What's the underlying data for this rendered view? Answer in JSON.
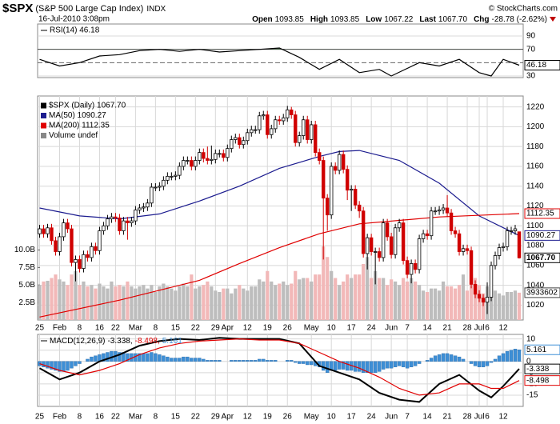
{
  "header": {
    "symbol": "$SPX",
    "name": "(S&P 500 Large Cap Index)",
    "exchange": "INDX",
    "timestamp": "16-Jul-2010 3:08pm",
    "credit": "© StockCharts.com",
    "stats": [
      {
        "label": "Open",
        "value": "1093.85"
      },
      {
        "label": "High",
        "value": "1093.85"
      },
      {
        "label": "Low",
        "value": "1067.22"
      },
      {
        "label": "Last",
        "value": "1067.70"
      },
      {
        "label": "Chg",
        "value": "-28.78 (-2.62%)"
      }
    ]
  },
  "chart_data": [
    {
      "type": "line",
      "title": "RSI(14) 46.18",
      "ylim": [
        27.6,
        108
      ],
      "yticks": [
        90,
        70,
        30
      ],
      "midline": 50,
      "overbought": 70,
      "fill_color": "#4f7f4f",
      "series": [
        {
          "name": "RSI(14)",
          "color": "#000000",
          "last_label": "46.18",
          "x": [
            0,
            5,
            10,
            15,
            20,
            25,
            30,
            35,
            40,
            45,
            50,
            55,
            60,
            65,
            70,
            75,
            80,
            85,
            88,
            95,
            100,
            105,
            110,
            113,
            116,
            120
          ],
          "values": [
            55,
            45,
            50,
            60,
            62,
            68,
            70,
            67,
            70,
            66,
            68,
            70,
            72,
            58,
            40,
            55,
            35,
            40,
            30,
            50,
            45,
            55,
            35,
            30,
            55,
            46.18
          ]
        }
      ]
    },
    {
      "type": "candlestick",
      "grid": true,
      "xlim": [
        -0.5,
        121
      ],
      "xticks": [
        {
          "value": 0,
          "label": "25"
        },
        {
          "value": 5,
          "label": "Feb"
        },
        {
          "value": 10,
          "label": "8"
        },
        {
          "value": 15,
          "label": "16"
        },
        {
          "value": 19,
          "label": "22"
        },
        {
          "value": 24,
          "label": "Mar"
        },
        {
          "value": 29,
          "label": "8"
        },
        {
          "value": 34,
          "label": "15"
        },
        {
          "value": 39,
          "label": "22"
        },
        {
          "value": 44,
          "label": "29"
        },
        {
          "value": 47,
          "label": "Apr"
        },
        {
          "value": 52,
          "label": "12"
        },
        {
          "value": 57,
          "label": "19"
        },
        {
          "value": 62,
          "label": "26"
        },
        {
          "value": 68,
          "label": "May"
        },
        {
          "value": 73,
          "label": "10"
        },
        {
          "value": 78,
          "label": "17"
        },
        {
          "value": 83,
          "label": "24"
        },
        {
          "value": 88,
          "label": "Jun"
        },
        {
          "value": 92,
          "label": "7"
        },
        {
          "value": 97,
          "label": "14"
        },
        {
          "value": 102,
          "label": "21"
        },
        {
          "value": 107,
          "label": "28"
        },
        {
          "value": 110,
          "label": "Jul"
        },
        {
          "value": 112,
          "label": "6"
        },
        {
          "value": 116,
          "label": "12"
        }
      ],
      "ylim": [
        1005,
        1231
      ],
      "yticks": [
        1020,
        1040,
        1060,
        1080,
        1100,
        1120,
        1140,
        1160,
        1180,
        1200,
        1220
      ],
      "y2lim": [
        0,
        32
      ],
      "y2ticks": [
        {
          "value": 2.5,
          "label": "2.5B"
        },
        {
          "value": 5,
          "label": "5.0B"
        },
        {
          "value": 7.5,
          "label": "7.5B"
        },
        {
          "value": 10,
          "label": "10.0B"
        }
      ],
      "ohlc": {
        "name": "$SPX (Daily) 1067.70",
        "last_label": "1067.70",
        "up_color": "#000000",
        "down_color": "#d00000",
        "open": [
          1092,
          1097,
          1092,
          1098,
          1085,
          1074,
          1089,
          1103,
          1097,
          1063,
          1066,
          1057,
          1071,
          1068,
          1079,
          1075,
          1095,
          1100,
          1107,
          1109,
          1108,
          1095,
          1105,
          1103,
          1105,
          1116,
          1118,
          1119,
          1123,
          1139,
          1139,
          1140,
          1146,
          1150,
          1150,
          1151,
          1160,
          1166,
          1166,
          1160,
          1166,
          1174,
          1168,
          1166,
          1167,
          1173,
          1173,
          1169,
          1178,
          1187,
          1189,
          1182,
          1186,
          1194,
          1197,
          1197,
          1211,
          1212,
          1192,
          1198,
          1207,
          1206,
          1209,
          1217,
          1212,
          1184,
          1191,
          1207,
          1187,
          1202,
          1174,
          1166,
          1128,
          1111,
          1160,
          1156,
          1172,
          1157,
          1136,
          1137,
          1121,
          1115,
          1072,
          1088,
          1074,
          1074,
          1068,
          1103,
          1089,
          1071,
          1098,
          1103,
          1065,
          1051,
          1062,
          1056,
          1087,
          1092,
          1090,
          1115,
          1115,
          1116,
          1118,
          1113,
          1095,
          1092,
          1074,
          1077,
          1075,
          1041,
          1031,
          1027,
          1023,
          1028,
          1060,
          1070,
          1078,
          1079,
          1095,
          1095,
          1094
        ],
        "high": [
          1101,
          1101,
          1102,
          1102,
          1089,
          1093,
          1107,
          1107,
          1101,
          1070,
          1070,
          1075,
          1075,
          1083,
          1083,
          1099,
          1104,
          1111,
          1113,
          1113,
          1112,
          1109,
          1109,
          1109,
          1120,
          1122,
          1123,
          1127,
          1143,
          1143,
          1144,
          1150,
          1154,
          1154,
          1155,
          1164,
          1170,
          1170,
          1170,
          1170,
          1178,
          1178,
          1180,
          1181,
          1177,
          1177,
          1177,
          1182,
          1191,
          1193,
          1193,
          1190,
          1198,
          1201,
          1201,
          1215,
          1216,
          1216,
          1202,
          1211,
          1211,
          1213,
          1221,
          1220,
          1216,
          1195,
          1211,
          1211,
          1206,
          1206,
          1178,
          1170,
          1132,
          1164,
          1164,
          1176,
          1176,
          1161,
          1141,
          1141,
          1125,
          1119,
          1092,
          1092,
          1078,
          1078,
          1107,
          1107,
          1093,
          1102,
          1107,
          1107,
          1069,
          1066,
          1066,
          1091,
          1096,
          1096,
          1119,
          1119,
          1120,
          1122,
          1131,
          1117,
          1099,
          1096,
          1081,
          1081,
          1079,
          1045,
          1035,
          1031,
          1043,
          1064,
          1074,
          1082,
          1083,
          1099,
          1099,
          1101,
          1094
        ],
        "low": [
          1088,
          1088,
          1088,
          1081,
          1070,
          1070,
          1085,
          1093,
          1059,
          1044,
          1053,
          1053,
          1064,
          1064,
          1071,
          1071,
          1091,
          1096,
          1103,
          1104,
          1091,
          1091,
          1086,
          1099,
          1101,
          1112,
          1114,
          1115,
          1119,
          1135,
          1135,
          1136,
          1142,
          1146,
          1146,
          1147,
          1156,
          1162,
          1156,
          1156,
          1162,
          1164,
          1162,
          1162,
          1163,
          1169,
          1165,
          1165,
          1174,
          1183,
          1178,
          1178,
          1182,
          1190,
          1193,
          1193,
          1207,
          1188,
          1188,
          1194,
          1202,
          1202,
          1205,
          1208,
          1180,
          1180,
          1187,
          1183,
          1183,
          1170,
          1162,
          1066,
          1095,
          1107,
          1152,
          1152,
          1153,
          1126,
          1115,
          1117,
          1108,
          1068,
          1056,
          1070,
          1041,
          1064,
          1064,
          1085,
          1067,
          1067,
          1094,
          1061,
          1047,
          1042,
          1052,
          1052,
          1083,
          1086,
          1086,
          1111,
          1111,
          1112,
          1109,
          1091,
          1088,
          1070,
          1070,
          1071,
          1037,
          1027,
          1023,
          1019,
          1011,
          1024,
          1056,
          1066,
          1074,
          1075,
          1091,
          1091,
          1067
        ],
        "close": [
          1097,
          1092,
          1098,
          1085,
          1074,
          1089,
          1103,
          1097,
          1063,
          1066,
          1057,
          1071,
          1068,
          1079,
          1075,
          1095,
          1100,
          1107,
          1109,
          1108,
          1095,
          1105,
          1103,
          1105,
          1116,
          1118,
          1119,
          1123,
          1139,
          1139,
          1140,
          1146,
          1150,
          1150,
          1151,
          1160,
          1166,
          1166,
          1160,
          1166,
          1174,
          1168,
          1166,
          1167,
          1173,
          1173,
          1169,
          1178,
          1187,
          1189,
          1182,
          1186,
          1194,
          1197,
          1197,
          1211,
          1212,
          1192,
          1198,
          1207,
          1206,
          1209,
          1217,
          1212,
          1184,
          1191,
          1207,
          1187,
          1202,
          1174,
          1166,
          1128,
          1111,
          1160,
          1156,
          1172,
          1157,
          1136,
          1137,
          1121,
          1115,
          1072,
          1088,
          1074,
          1074,
          1068,
          1103,
          1089,
          1071,
          1098,
          1103,
          1065,
          1051,
          1062,
          1056,
          1087,
          1092,
          1090,
          1115,
          1115,
          1116,
          1118,
          1113,
          1095,
          1092,
          1074,
          1077,
          1075,
          1041,
          1031,
          1027,
          1023,
          1028,
          1060,
          1070,
          1078,
          1079,
          1095,
          1095,
          1097,
          1067.7
        ]
      },
      "volume": {
        "name": "Volume undef",
        "axis": "y2",
        "last_label": "3933602",
        "up_color": "#bdbdbd",
        "down_color": "#f2b8b8",
        "values": [
          5,
          5.5,
          5.6,
          6,
          6.5,
          5.8,
          5.5,
          5,
          6.5,
          7,
          5,
          5.5,
          4.8,
          5,
          4.5,
          5.2,
          4.8,
          4.5,
          5.5,
          4.8,
          5,
          4.8,
          5.5,
          4.8,
          4.5,
          4.8,
          5,
          4.5,
          5,
          4,
          4.8,
          5.2,
          4.8,
          4.5,
          4.2,
          4.8,
          5.2,
          4.8,
          6.5,
          4.5,
          4.8,
          5,
          5.5,
          4.8,
          4.2,
          4,
          4.5,
          4.5,
          3.8,
          4.5,
          5,
          4.5,
          4.2,
          4.8,
          4.8,
          5.8,
          5.5,
          7,
          5.5,
          5,
          5.2,
          5.5,
          5,
          5.2,
          7,
          5.8,
          6,
          6,
          5.5,
          6.5,
          6.5,
          10.5,
          9,
          7,
          6,
          5,
          5.5,
          6.5,
          6,
          6.5,
          6.5,
          8,
          9,
          6,
          7,
          6,
          6,
          5,
          5.8,
          5.5,
          5,
          6,
          5.5,
          6,
          5.5,
          5,
          4.2,
          4,
          4.5,
          4.5,
          4.2,
          5.5,
          4.8,
          4.8,
          4.5,
          5,
          6.5,
          4.2,
          6.5,
          6,
          5,
          3.8,
          4.8,
          4.5,
          4.2,
          3.8,
          3.5,
          4,
          4,
          4.2,
          3.9
        ]
      },
      "series": [
        {
          "name": "MA(50) 1090.27",
          "color": "#1c1c8f",
          "last_label": "1090.27",
          "x": [
            0,
            10,
            20,
            30,
            40,
            50,
            60,
            70,
            75,
            80,
            90,
            100,
            110,
            120
          ],
          "values": [
            1118,
            1110,
            1107,
            1112,
            1125,
            1140,
            1158,
            1170,
            1175,
            1176,
            1166,
            1143,
            1110,
            1090.27
          ]
        },
        {
          "name": "MA(200) 1112.35",
          "color": "#e00000",
          "last_label": "1112.35",
          "x": [
            0,
            20,
            40,
            50,
            60,
            70,
            80,
            100,
            120
          ],
          "values": [
            1008,
            1025,
            1045,
            1062,
            1078,
            1092,
            1102,
            1109,
            1112.35
          ]
        }
      ]
    },
    {
      "type": "macd",
      "title": "MACD(12,26,9)",
      "ylim": [
        -20,
        12
      ],
      "yticks": [
        10,
        5,
        0,
        -5,
        -10,
        -15
      ],
      "series": [
        {
          "legend": "-3.338,",
          "last_label": "-3.338",
          "color": "#000000",
          "x": [
            0,
            5,
            10,
            15,
            20,
            25,
            30,
            35,
            40,
            45,
            50,
            55,
            60,
            65,
            70,
            75,
            80,
            85,
            90,
            95,
            100,
            105,
            110,
            113,
            116,
            120
          ],
          "values": [
            -3,
            -8,
            -5,
            0,
            3,
            7,
            9,
            10,
            9.5,
            10.5,
            10,
            10,
            10,
            8,
            -2,
            -5,
            -8,
            -14,
            -17,
            -18,
            -10,
            -6,
            -13,
            -16,
            -11,
            -3.338
          ]
        },
        {
          "legend": "-8.498,",
          "last_label": "-8.498",
          "color": "#e00000",
          "x": [
            0,
            5,
            10,
            15,
            20,
            25,
            30,
            35,
            40,
            45,
            50,
            55,
            60,
            65,
            70,
            75,
            80,
            85,
            90,
            95,
            100,
            105,
            110,
            113,
            116,
            120
          ],
          "values": [
            -1,
            -4,
            -6,
            -4,
            -1,
            3,
            6,
            8,
            9,
            9.5,
            10,
            9.5,
            9.5,
            8,
            4,
            0,
            -3,
            -7,
            -12,
            -15,
            -14,
            -10,
            -10,
            -12,
            -12,
            -8.498
          ]
        }
      ],
      "histogram": {
        "legend": "5.161",
        "last_label": "5.161",
        "color": "#3d8fd6",
        "values": [
          -2,
          -2.5,
          -3,
          -3.5,
          -4,
          -4.5,
          -4.5,
          -4,
          -3,
          -2,
          -1,
          0,
          1,
          2,
          2.5,
          3,
          3.5,
          4,
          4.5,
          4.5,
          4,
          4,
          3.5,
          3.5,
          3.5,
          3.5,
          3.5,
          3.5,
          4,
          3.5,
          3,
          2.5,
          2,
          1.5,
          1.5,
          1.5,
          2,
          2,
          1.5,
          1.5,
          1.5,
          1,
          0.5,
          0.5,
          0.5,
          0.5,
          0,
          0,
          0.5,
          0.5,
          0.5,
          0.5,
          0.5,
          0.5,
          0.5,
          1,
          1,
          0.5,
          0.5,
          0.5,
          0,
          0,
          0.5,
          0.5,
          -0.5,
          -1,
          -1,
          -1.5,
          -1.5,
          -2,
          -2.5,
          -4,
          -5,
          -4,
          -4,
          -3.5,
          -3.5,
          -4,
          -4,
          -4.5,
          -4.5,
          -5,
          -5,
          -5,
          -5,
          -4.5,
          -3.5,
          -3,
          -3,
          -2.5,
          -2,
          -2.5,
          -3,
          -2.5,
          -2,
          -1,
          0,
          0.5,
          1.5,
          2.5,
          3,
          3.5,
          3.5,
          3,
          2.5,
          2,
          1,
          0,
          -1,
          -2,
          -2.5,
          -2.5,
          -2,
          -0.5,
          1,
          2.5,
          3.5,
          4.5,
          5,
          5.5,
          5.161
        ]
      }
    }
  ]
}
